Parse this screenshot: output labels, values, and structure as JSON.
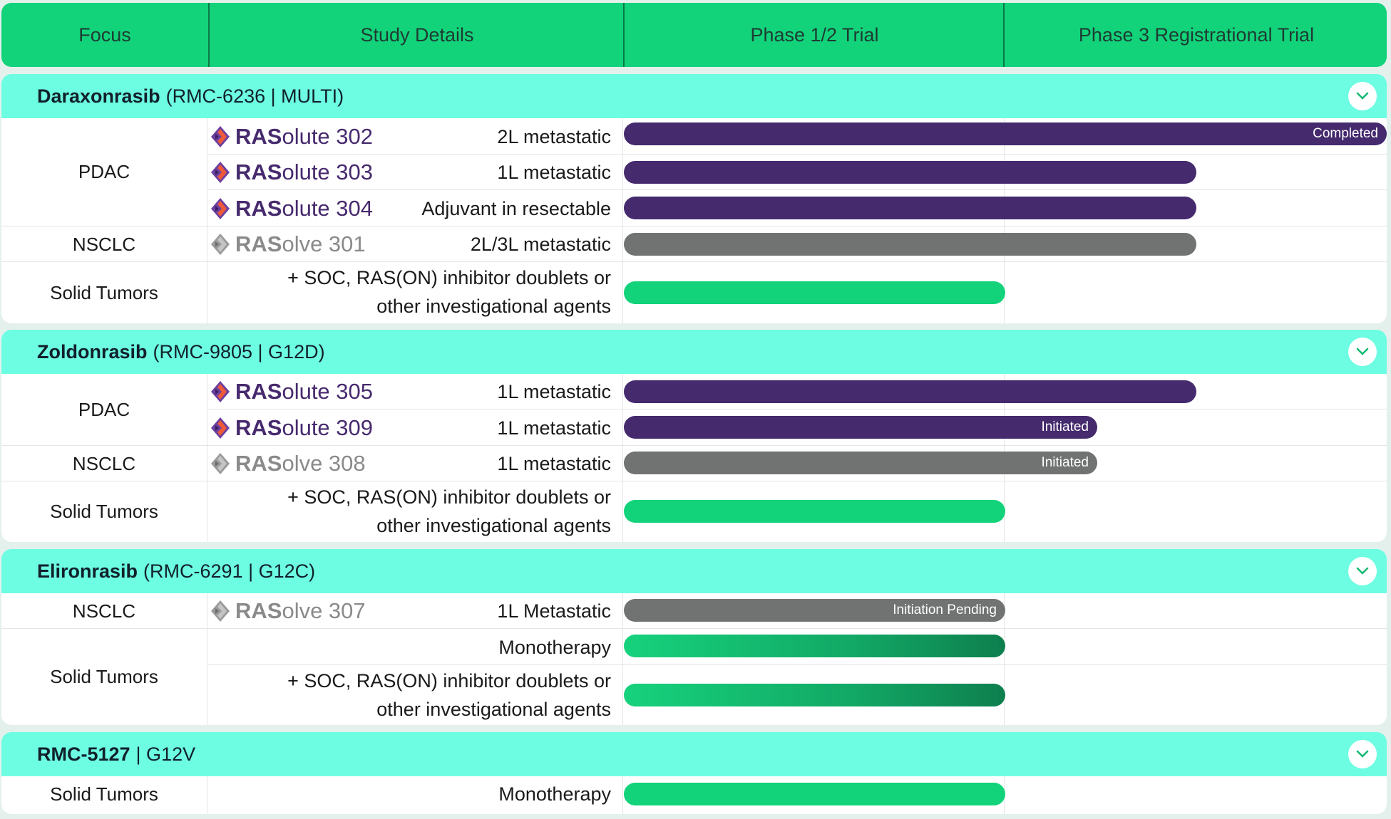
{
  "header": {
    "col_focus": "Focus",
    "col_study": "Study Details",
    "col_phase12": "Phase 1/2 Trial",
    "col_phase3": "Phase 3 Registrational Trial"
  },
  "sections": [
    {
      "name": "Daraxonrasib",
      "tag": "(RMC-6236 | MULTI)",
      "rows": [
        {
          "focus": "PDAC",
          "study_bold": "RAS",
          "study_rest": "olute 302",
          "detail": "2L metastatic",
          "progress_pct": 100,
          "status": "Completed"
        },
        {
          "study_bold": "RAS",
          "study_rest": "olute 303",
          "detail": "1L metastatic",
          "progress_pct": 75,
          "status": ""
        },
        {
          "study_bold": "RAS",
          "study_rest": "olute 304",
          "detail": "Adjuvant in resectable",
          "progress_pct": 75,
          "status": ""
        },
        {
          "focus": "NSCLC",
          "study_bold": "RAS",
          "study_rest": "olve 301",
          "detail": "2L/3L metastatic",
          "progress_pct": 75,
          "status": ""
        },
        {
          "focus": "Solid Tumors",
          "detail_line1": "+ SOC, RAS(ON) inhibitor doublets or",
          "detail_line2": "other investigational agents",
          "progress_pct": 50
        }
      ]
    },
    {
      "name": "Zoldonrasib",
      "tag": "(RMC-9805 | G12D)",
      "rows": [
        {
          "focus": "PDAC",
          "study_bold": "RAS",
          "study_rest": "olute 305",
          "detail": "1L metastatic",
          "progress_pct": 75,
          "status": ""
        },
        {
          "study_bold": "RAS",
          "study_rest": "olute 309",
          "detail": "1L metastatic",
          "progress_pct": 62,
          "status": "Initiated"
        },
        {
          "focus": "NSCLC",
          "study_bold": "RAS",
          "study_rest": "olve 308",
          "detail": "1L metastatic",
          "progress_pct": 62,
          "status": "Initiated"
        },
        {
          "focus": "Solid Tumors",
          "detail_line1": "+ SOC, RAS(ON) inhibitor doublets or",
          "detail_line2": "other investigational agents",
          "progress_pct": 50
        }
      ]
    },
    {
      "name": "Elironrasib",
      "tag": "(RMC-6291 | G12C)",
      "rows": [
        {
          "focus": "NSCLC",
          "study_bold": "RAS",
          "study_rest": "olve 307",
          "detail": "1L Metastatic",
          "progress_pct": 50,
          "status": "Initiation Pending"
        },
        {
          "focus": "Solid Tumors",
          "detail": "Monotherapy",
          "progress_pct": 50
        },
        {
          "detail_line1": "+ SOC, RAS(ON) inhibitor doublets or",
          "detail_line2": "other investigational agents",
          "progress_pct": 50
        }
      ]
    },
    {
      "name": "RMC-5127",
      "tag": "| G12V",
      "rows": [
        {
          "focus": "Solid Tumors",
          "detail": "Monotherapy",
          "progress_pct": 50
        }
      ]
    }
  ],
  "icons": {
    "logo": "rasolute-logo-icon",
    "logo_gray": "rasolve-logo-icon",
    "expand": "chevron-down-icon"
  },
  "colors": {
    "header": "#12d37a",
    "section_head": "#6dfde2",
    "phase3_bar": "#452a6e",
    "nsclc_bar": "#707372",
    "phase12_bar": "#12d37a"
  }
}
